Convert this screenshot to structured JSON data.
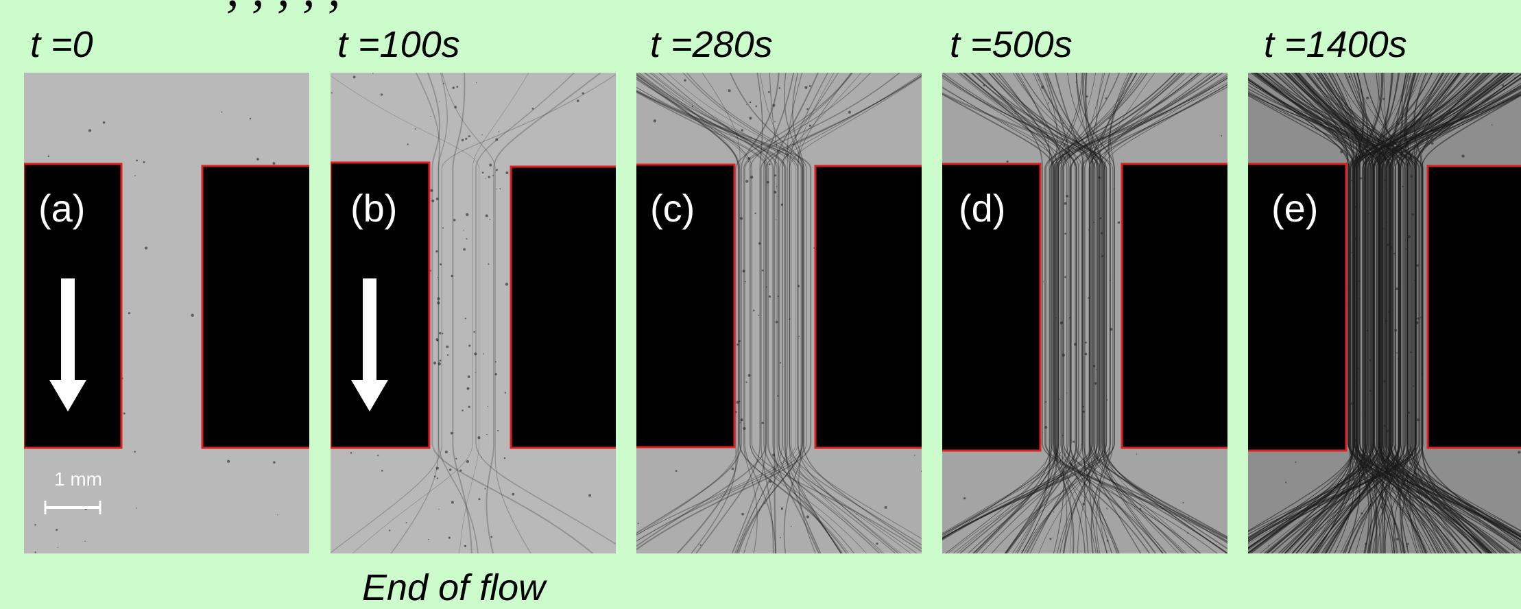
{
  "header": {
    "cut_title": ", , , , ,"
  },
  "panels": [
    {
      "time": "t =0",
      "letter": "(a)",
      "stage": 0,
      "has_arrow": true
    },
    {
      "time": "t =100s",
      "letter": "(b)",
      "stage": 1,
      "has_arrow": true
    },
    {
      "time": "t =280s",
      "letter": "(c)",
      "stage": 2,
      "has_arrow": false
    },
    {
      "time": "t =500s",
      "letter": "(d)",
      "stage": 3,
      "has_arrow": false
    },
    {
      "time": "t =1400s",
      "letter": "(e)",
      "stage": 4,
      "has_arrow": false
    }
  ],
  "scale_bar": {
    "label": "1 mm"
  },
  "caption": {
    "text": "End of flow"
  },
  "colors": {
    "background": "#ccfccc",
    "obstacle_outline": "#e02020",
    "obstacle_fill": "#000000",
    "image_gray": "#b9b9b9"
  }
}
